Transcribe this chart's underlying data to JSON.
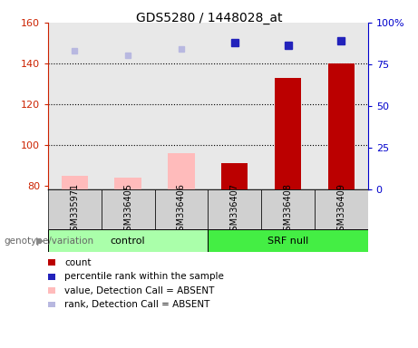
{
  "title": "GDS5280 / 1448028_at",
  "samples": [
    "GSM335971",
    "GSM336405",
    "GSM336406",
    "GSM336407",
    "GSM336408",
    "GSM336409"
  ],
  "bar_values": [
    85,
    84,
    96,
    91,
    133,
    140
  ],
  "bar_colors": [
    "#ffbbbb",
    "#ffbbbb",
    "#ffbbbb",
    "#bb0000",
    "#bb0000",
    "#bb0000"
  ],
  "rank_values": [
    146,
    144,
    147,
    150,
    149,
    151
  ],
  "rank_absent_color": "#b8b8e0",
  "rank_present_color": "#2222bb",
  "rank_absent_indices": [
    0,
    1,
    2
  ],
  "rank_present_indices": [
    3,
    4,
    5
  ],
  "ylim_left": [
    78,
    160
  ],
  "ylim_right": [
    0,
    100
  ],
  "yticks_left": [
    80,
    100,
    120,
    140,
    160
  ],
  "yticks_right": [
    0,
    25,
    50,
    75,
    100
  ],
  "ytick_labels_right": [
    "0",
    "25",
    "50",
    "75",
    "100%"
  ],
  "left_tick_color": "#cc2200",
  "right_tick_color": "#0000cc",
  "hgrid_at": [
    100,
    120,
    140
  ],
  "bar_bottom": 78,
  "plot_bg": "#e8e8e8",
  "sample_box_color": "#d0d0d0",
  "control_color": "#aaffaa",
  "srf_color": "#44ee44",
  "group_label": "genotype/variation",
  "legend_items": [
    {
      "label": "count",
      "color": "#bb0000"
    },
    {
      "label": "percentile rank within the sample",
      "color": "#2222bb"
    },
    {
      "label": "value, Detection Call = ABSENT",
      "color": "#ffbbbb"
    },
    {
      "label": "rank, Detection Call = ABSENT",
      "color": "#b8b8e0"
    }
  ]
}
